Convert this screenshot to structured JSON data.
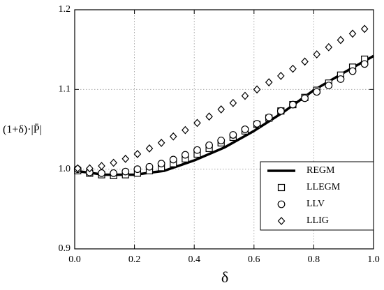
{
  "chart_data": {
    "type": "line",
    "xlabel": "δ",
    "ylabel": "(1+δ)·|P̄|",
    "xlim": [
      0,
      1
    ],
    "ylim": [
      0.9,
      1.2
    ],
    "xticks": [
      {
        "value": 0,
        "label": "0.0"
      },
      0.2,
      0.4,
      0.6,
      0.8,
      {
        "value": 1,
        "label": "1.0"
      }
    ],
    "yticks": [
      0.9,
      {
        "value": 1,
        "label": "1.0"
      },
      1.1,
      1.2
    ],
    "grid": true,
    "legend": "lower right",
    "series": [
      {
        "name": "REGM",
        "color": "#000000",
        "marker": "none",
        "x": [
          0,
          0.1,
          0.2,
          0.3,
          0.4,
          0.5,
          0.6,
          0.7,
          0.8,
          0.9,
          1
        ],
        "values": [
          0.998,
          0.993,
          0.993,
          0.998,
          1.011,
          1.027,
          1.048,
          1.072,
          1.099,
          1.121,
          1.142
        ]
      },
      {
        "name": "LLEGM",
        "color": "#000000",
        "marker": "square",
        "x": [
          0.01,
          0.05,
          0.09,
          0.13,
          0.17,
          0.21,
          0.25,
          0.29,
          0.33,
          0.37,
          0.41,
          0.45,
          0.49,
          0.53,
          0.57,
          0.61,
          0.65,
          0.69,
          0.73,
          0.77,
          0.81,
          0.85,
          0.89,
          0.93,
          0.97
        ],
        "values": [
          0.998,
          0.995,
          0.993,
          0.992,
          0.993,
          0.995,
          0.998,
          1.002,
          1.007,
          1.013,
          1.019,
          1.026,
          1.033,
          1.04,
          1.048,
          1.056,
          1.064,
          1.073,
          1.081,
          1.09,
          1.099,
          1.108,
          1.118,
          1.128,
          1.138
        ]
      },
      {
        "name": "LLV",
        "color": "#000000",
        "marker": "circle",
        "x": [
          0.01,
          0.05,
          0.09,
          0.13,
          0.17,
          0.21,
          0.25,
          0.29,
          0.33,
          0.37,
          0.41,
          0.45,
          0.49,
          0.53,
          0.57,
          0.61,
          0.65,
          0.69,
          0.73,
          0.77,
          0.81,
          0.85,
          0.89,
          0.93,
          0.97
        ],
        "values": [
          1.0,
          0.996,
          0.995,
          0.995,
          0.997,
          1.0,
          1.003,
          1.007,
          1.012,
          1.018,
          1.024,
          1.03,
          1.036,
          1.043,
          1.05,
          1.057,
          1.065,
          1.073,
          1.081,
          1.089,
          1.097,
          1.105,
          1.113,
          1.123,
          1.132
        ]
      },
      {
        "name": "LLIG",
        "color": "#000000",
        "marker": "diamond",
        "x": [
          0.01,
          0.05,
          0.09,
          0.13,
          0.17,
          0.21,
          0.25,
          0.29,
          0.33,
          0.37,
          0.41,
          0.45,
          0.49,
          0.53,
          0.57,
          0.61,
          0.65,
          0.69,
          0.73,
          0.77,
          0.81,
          0.85,
          0.89,
          0.93,
          0.97
        ],
        "values": [
          1.001,
          1.001,
          1.004,
          1.008,
          1.013,
          1.019,
          1.026,
          1.033,
          1.041,
          1.049,
          1.058,
          1.066,
          1.075,
          1.083,
          1.092,
          1.1,
          1.109,
          1.117,
          1.126,
          1.135,
          1.144,
          1.153,
          1.162,
          1.17,
          1.176
        ]
      }
    ]
  }
}
